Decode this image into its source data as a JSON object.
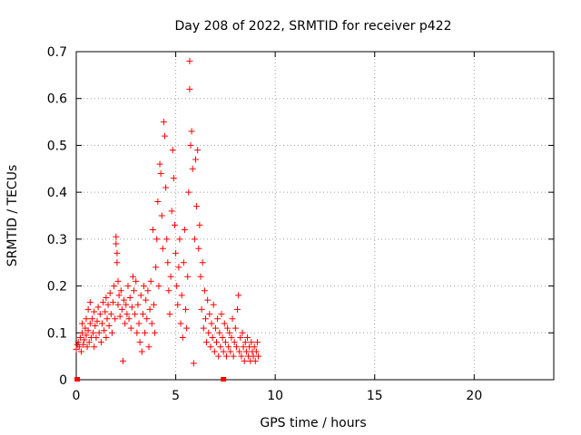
{
  "chart_data": {
    "type": "scatter",
    "title": "Day 208 of 2022, SRMTID for receiver p422",
    "xlabel": "GPS time / hours",
    "ylabel": "SRMTID / TECUs",
    "xlim": [
      0,
      24
    ],
    "ylim": [
      0,
      0.7
    ],
    "xticks": [
      "0",
      "5",
      "10",
      "15",
      "20"
    ],
    "yticks": [
      "0",
      "0.1",
      "0.2",
      "0.3",
      "0.4",
      "0.5",
      "0.6",
      "0.7"
    ],
    "grid": true,
    "marker": "+",
    "color": "#ff0000",
    "series": [
      {
        "points": [
          [
            0.0,
            0.065
          ],
          [
            0.05,
            0.075
          ],
          [
            0.1,
            0.08
          ],
          [
            0.15,
            0.07
          ],
          [
            0.2,
            0.09
          ],
          [
            0.25,
            0.06
          ],
          [
            0.3,
            0.1
          ],
          [
            0.3,
            0.12
          ],
          [
            0.35,
            0.075
          ],
          [
            0.4,
            0.085
          ],
          [
            0.45,
            0.11
          ],
          [
            0.5,
            0.095
          ],
          [
            0.5,
            0.13
          ],
          [
            0.55,
            0.07
          ],
          [
            0.6,
            0.15
          ],
          [
            0.6,
            0.105
          ],
          [
            0.65,
            0.08
          ],
          [
            0.7,
            0.12
          ],
          [
            0.7,
            0.165
          ],
          [
            0.75,
            0.09
          ],
          [
            0.8,
            0.13
          ],
          [
            0.85,
            0.1
          ],
          [
            0.9,
            0.07
          ],
          [
            0.9,
            0.145
          ],
          [
            0.95,
            0.115
          ],
          [
            1.0,
            0.09
          ],
          [
            1.05,
            0.125
          ],
          [
            1.1,
            0.155
          ],
          [
            1.15,
            0.1
          ],
          [
            1.2,
            0.14
          ],
          [
            1.25,
            0.08
          ],
          [
            1.3,
            0.12
          ],
          [
            1.35,
            0.165
          ],
          [
            1.4,
            0.105
          ],
          [
            1.45,
            0.145
          ],
          [
            1.5,
            0.175
          ],
          [
            1.5,
            0.09
          ],
          [
            1.55,
            0.13
          ],
          [
            1.6,
            0.16
          ],
          [
            1.65,
            0.115
          ],
          [
            1.7,
            0.185
          ],
          [
            1.75,
            0.14
          ],
          [
            1.8,
            0.1
          ],
          [
            1.85,
            0.165
          ],
          [
            1.9,
            0.2
          ],
          [
            1.95,
            0.13
          ],
          [
            2.0,
            0.29
          ],
          [
            2.0,
            0.305
          ],
          [
            2.05,
            0.27
          ],
          [
            2.05,
            0.25
          ],
          [
            2.1,
            0.21
          ],
          [
            2.1,
            0.16
          ],
          [
            2.15,
            0.18
          ],
          [
            2.2,
            0.135
          ],
          [
            2.25,
            0.19
          ],
          [
            2.3,
            0.15
          ],
          [
            2.35,
            0.04
          ],
          [
            2.4,
            0.17
          ],
          [
            2.45,
            0.12
          ],
          [
            2.5,
            0.16
          ],
          [
            2.55,
            0.14
          ],
          [
            2.6,
            0.2
          ],
          [
            2.65,
            0.13
          ],
          [
            2.7,
            0.175
          ],
          [
            2.75,
            0.11
          ],
          [
            2.8,
            0.155
          ],
          [
            2.85,
            0.22
          ],
          [
            2.9,
            0.19
          ],
          [
            2.95,
            0.14
          ],
          [
            3.0,
            0.21
          ],
          [
            3.05,
            0.1
          ],
          [
            3.1,
            0.16
          ],
          [
            3.15,
            0.12
          ],
          [
            3.2,
            0.08
          ],
          [
            3.25,
            0.18
          ],
          [
            3.3,
            0.06
          ],
          [
            3.35,
            0.14
          ],
          [
            3.4,
            0.2
          ],
          [
            3.45,
            0.1
          ],
          [
            3.5,
            0.17
          ],
          [
            3.55,
            0.13
          ],
          [
            3.6,
            0.19
          ],
          [
            3.65,
            0.07
          ],
          [
            3.7,
            0.15
          ],
          [
            3.75,
            0.21
          ],
          [
            3.8,
            0.12
          ],
          [
            3.85,
            0.32
          ],
          [
            3.9,
            0.16
          ],
          [
            3.95,
            0.1
          ],
          [
            4.0,
            0.24
          ],
          [
            4.05,
            0.3
          ],
          [
            4.1,
            0.38
          ],
          [
            4.15,
            0.2
          ],
          [
            4.2,
            0.46
          ],
          [
            4.25,
            0.44
          ],
          [
            4.3,
            0.35
          ],
          [
            4.35,
            0.28
          ],
          [
            4.4,
            0.55
          ],
          [
            4.45,
            0.52
          ],
          [
            4.5,
            0.41
          ],
          [
            4.55,
            0.3
          ],
          [
            4.6,
            0.25
          ],
          [
            4.65,
            0.19
          ],
          [
            4.7,
            0.14
          ],
          [
            4.75,
            0.22
          ],
          [
            4.8,
            0.36
          ],
          [
            4.85,
            0.49
          ],
          [
            4.9,
            0.43
          ],
          [
            4.95,
            0.33
          ],
          [
            5.0,
            0.27
          ],
          [
            5.05,
            0.2
          ],
          [
            5.1,
            0.16
          ],
          [
            5.15,
            0.24
          ],
          [
            5.2,
            0.3
          ],
          [
            5.25,
            0.12
          ],
          [
            5.3,
            0.18
          ],
          [
            5.35,
            0.09
          ],
          [
            5.4,
            0.25
          ],
          [
            5.45,
            0.32
          ],
          [
            5.5,
            0.15
          ],
          [
            5.55,
            0.11
          ],
          [
            5.6,
            0.22
          ],
          [
            5.65,
            0.4
          ],
          [
            5.7,
            0.68
          ],
          [
            5.7,
            0.62
          ],
          [
            5.75,
            0.5
          ],
          [
            5.8,
            0.53
          ],
          [
            5.85,
            0.45
          ],
          [
            5.9,
            0.035
          ],
          [
            5.95,
            0.3
          ],
          [
            6.0,
            0.47
          ],
          [
            6.05,
            0.37
          ],
          [
            6.1,
            0.49
          ],
          [
            6.15,
            0.28
          ],
          [
            6.2,
            0.33
          ],
          [
            6.25,
            0.22
          ],
          [
            6.3,
            0.15
          ],
          [
            6.35,
            0.25
          ],
          [
            6.4,
            0.11
          ],
          [
            6.45,
            0.19
          ],
          [
            6.5,
            0.13
          ],
          [
            6.55,
            0.08
          ],
          [
            6.6,
            0.17
          ],
          [
            6.65,
            0.1
          ],
          [
            6.7,
            0.14
          ],
          [
            6.75,
            0.07
          ],
          [
            6.8,
            0.12
          ],
          [
            6.85,
            0.09
          ],
          [
            6.9,
            0.16
          ],
          [
            6.95,
            0.06
          ],
          [
            7.0,
            0.11
          ],
          [
            7.05,
            0.08
          ],
          [
            7.1,
            0.13
          ],
          [
            7.15,
            0.05
          ],
          [
            7.2,
            0.1
          ],
          [
            7.25,
            0.07
          ],
          [
            7.3,
            0.14
          ],
          [
            7.35,
            0.09
          ],
          [
            7.4,
            0.06
          ],
          [
            7.45,
            0.12
          ],
          [
            7.5,
            0.08
          ],
          [
            7.55,
            0.05
          ],
          [
            7.6,
            0.11
          ],
          [
            7.65,
            0.07
          ],
          [
            7.7,
            0.1
          ],
          [
            7.75,
            0.06
          ],
          [
            7.8,
            0.09
          ],
          [
            7.85,
            0.13
          ],
          [
            7.9,
            0.05
          ],
          [
            7.95,
            0.08
          ],
          [
            8.0,
            0.11
          ],
          [
            8.05,
            0.07
          ],
          [
            8.1,
            0.15
          ],
          [
            8.15,
            0.18
          ],
          [
            8.2,
            0.06
          ],
          [
            8.25,
            0.09
          ],
          [
            8.3,
            0.05
          ],
          [
            8.35,
            0.1
          ],
          [
            8.4,
            0.07
          ],
          [
            8.45,
            0.04
          ],
          [
            8.5,
            0.08
          ],
          [
            8.55,
            0.06
          ],
          [
            8.6,
            0.09
          ],
          [
            8.65,
            0.05
          ],
          [
            8.7,
            0.07
          ],
          [
            8.75,
            0.04
          ],
          [
            8.8,
            0.08
          ],
          [
            8.85,
            0.06
          ],
          [
            8.9,
            0.05
          ],
          [
            8.95,
            0.07
          ],
          [
            9.0,
            0.04
          ],
          [
            9.05,
            0.06
          ],
          [
            9.1,
            0.08
          ],
          [
            9.15,
            0.05
          ]
        ]
      }
    ],
    "baseline_markers": [
      [
        0.05,
        0.0
      ],
      [
        7.4,
        0.0
      ]
    ]
  }
}
